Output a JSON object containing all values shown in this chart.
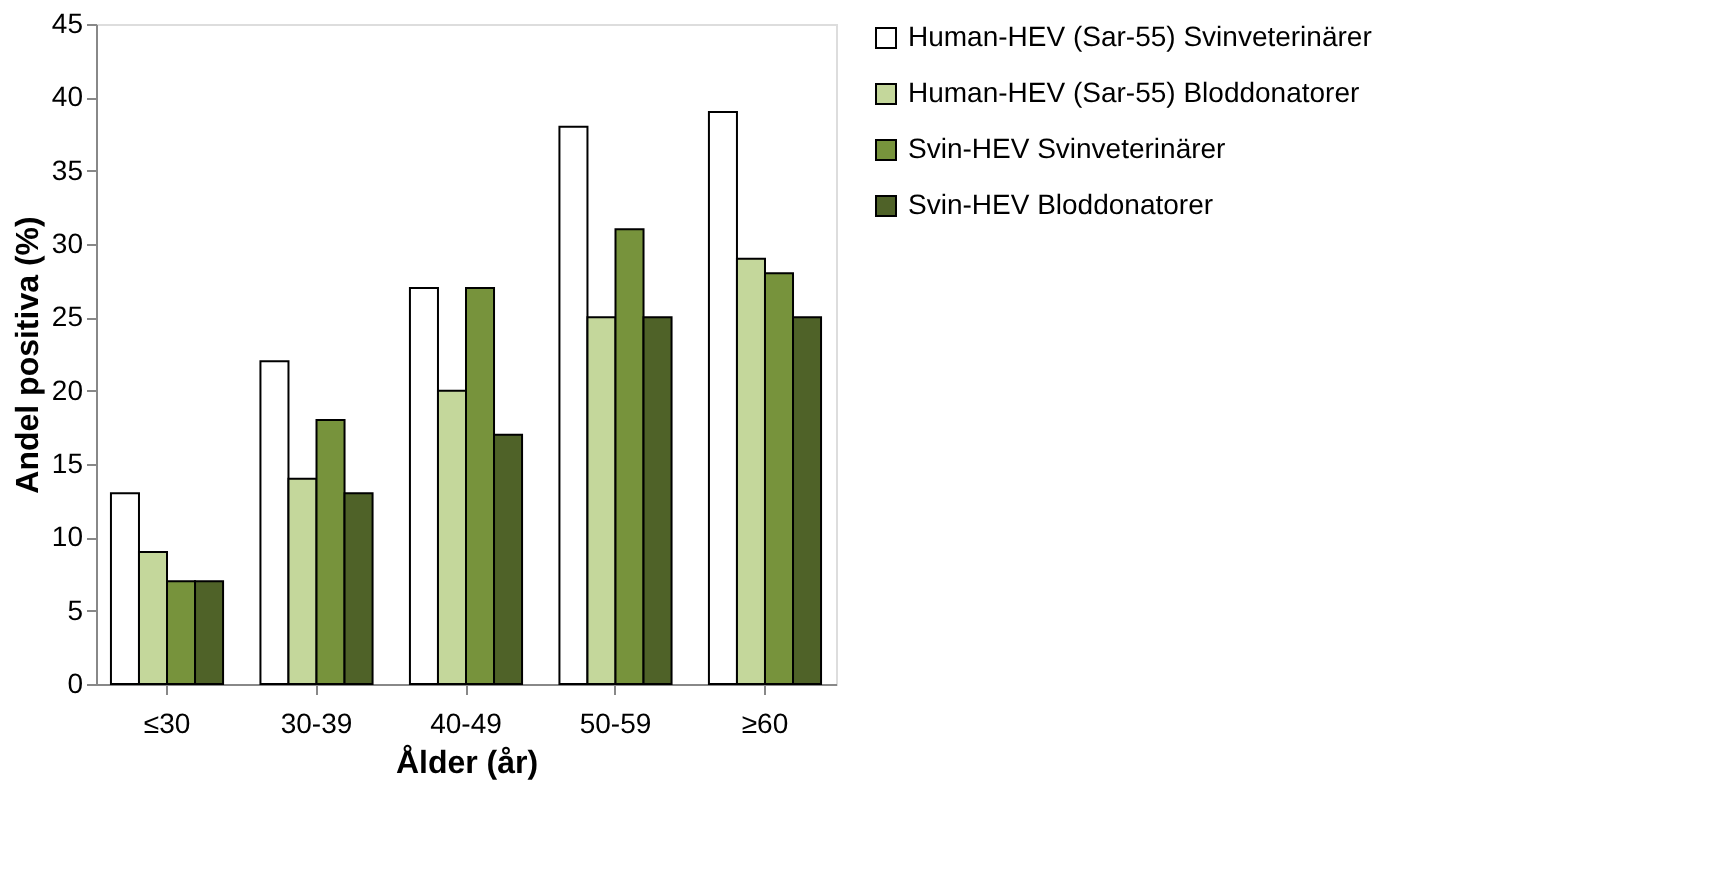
{
  "chart_data": {
    "type": "bar",
    "xlabel": "Ålder (år)",
    "ylabel": "Andel positiva (%)",
    "categories": [
      "≤30",
      "30-39",
      "40-49",
      "50-59",
      "≥60"
    ],
    "series": [
      {
        "name": "Human-HEV (Sar-55) Svinveterinärer",
        "color": "#ffffff",
        "values": [
          13,
          22,
          27,
          38,
          39
        ]
      },
      {
        "name": "Human-HEV (Sar-55) Bloddonatorer",
        "color": "#c4d79b",
        "values": [
          9,
          14,
          20,
          25,
          29
        ]
      },
      {
        "name": "Svin-HEV Svinveterinärer",
        "color": "#77933c",
        "values": [
          7,
          18,
          27,
          31,
          28
        ]
      },
      {
        "name": "Svin-HEV Bloddonatorer",
        "color": "#4f6228",
        "values": [
          7,
          13,
          17,
          25,
          25
        ]
      }
    ],
    "ylim": [
      0,
      45
    ],
    "yticks": [
      0,
      5,
      10,
      15,
      20,
      25,
      30,
      35,
      40,
      45
    ],
    "grid": false,
    "legend": "right"
  }
}
